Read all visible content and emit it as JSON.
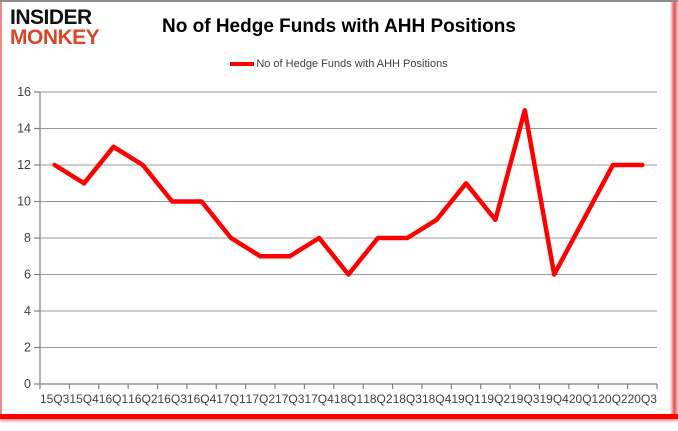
{
  "logo": {
    "line1": "INSIDER",
    "line2": "MONKEY"
  },
  "header": {
    "title": "No of Hedge Funds with AHH Positions"
  },
  "legend": {
    "label": "No of Hedge Funds with AHH Positions"
  },
  "chart_data": {
    "type": "line",
    "title": "No of Hedge Funds with AHH Positions",
    "categories": [
      "15Q3",
      "15Q4",
      "16Q1",
      "16Q2",
      "16Q3",
      "16Q4",
      "17Q1",
      "17Q2",
      "17Q3",
      "17Q4",
      "18Q1",
      "18Q2",
      "18Q3",
      "18Q4",
      "19Q1",
      "19Q2",
      "19Q3",
      "19Q4",
      "20Q1",
      "20Q2",
      "20Q3"
    ],
    "series": [
      {
        "name": "No of Hedge Funds with AHH Positions",
        "values": [
          12,
          11,
          13,
          12,
          10,
          10,
          8,
          7,
          7,
          8,
          6,
          8,
          8,
          9,
          11,
          9,
          15,
          6,
          9,
          12,
          12
        ],
        "color": "#FF0000"
      }
    ],
    "xlabel": "",
    "ylabel": "",
    "ylim": [
      0,
      16
    ],
    "ytick_step": 2,
    "grid": "horizontal",
    "legend_position": "top-center"
  },
  "colors": {
    "line": "#FF0000",
    "logo_red": "#D9472B",
    "logo_black": "#111111",
    "label_text": "#3F3F3F",
    "gridline": "#999999",
    "axis": "#808080",
    "frame_red": "#FF0000",
    "frame_top_gray": "#8C8C8C"
  }
}
